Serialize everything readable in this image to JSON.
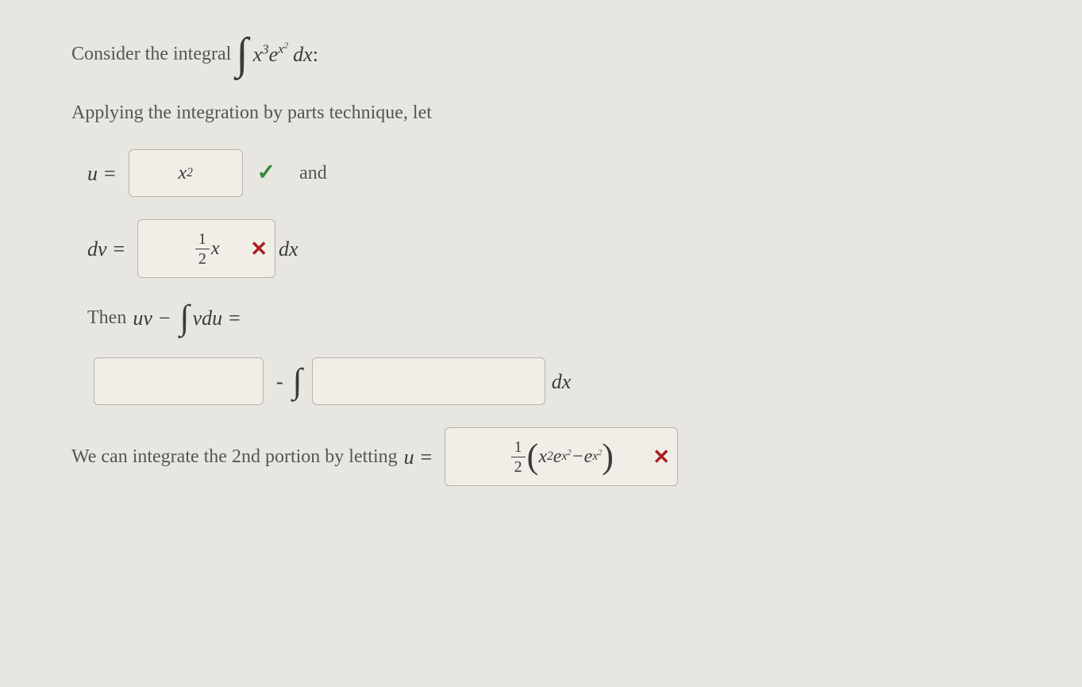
{
  "problem": {
    "intro_text": "Consider the integral",
    "integral_expr_html": "x<sup>3</sup>e<sup>x<sup>2</sup></sup>",
    "dx": "dx",
    "colon": ":",
    "apply_text": "Applying the integration by parts technique, let"
  },
  "u_row": {
    "u_label": "u",
    "equals": "=",
    "input_value_html": "x<sup>2</sup>",
    "and_text": "and"
  },
  "dv_row": {
    "dv_label": "dv",
    "equals": "=",
    "input_value_html": "<span class=\"frac\"><span class=\"num\">1</span><span class=\"den\">2</span></span> <span style=\"font-style:italic\">x</span>",
    "dx": "dx"
  },
  "then_row": {
    "then_text": "Then",
    "uv_label": "uv",
    "minus": "−",
    "vdu_label": "vdu",
    "equals": "="
  },
  "result_row": {
    "input1_value": "",
    "minus": "-",
    "input2_value": "",
    "dx": "dx"
  },
  "second_portion": {
    "text": "We can integrate the 2nd portion by letting",
    "u_label": "u",
    "equals": "=",
    "input_value_html": "<span class=\"frac\"><span class=\"num\">1</span><span class=\"den\">2</span></span> <span class=\"paren-big\">(</span><span style=\"font-style:italic\">x</span><sup>2</sup><span style=\"font-style:italic\">e</span><sup><span style=\"font-style:italic\">x</span><sup>2</sup></sup> − <span style=\"font-style:italic\">e</span><sup><span style=\"font-style:italic\">x</span><sup>2</sup></sup><span class=\"paren-big\">)</span>"
  },
  "colors": {
    "background": "#e8e6e0",
    "text": "#3a3a3a",
    "box_border": "#b8b4a8",
    "box_bg": "#f0eee7",
    "correct": "#2e8b3a",
    "incorrect": "#a82020"
  }
}
